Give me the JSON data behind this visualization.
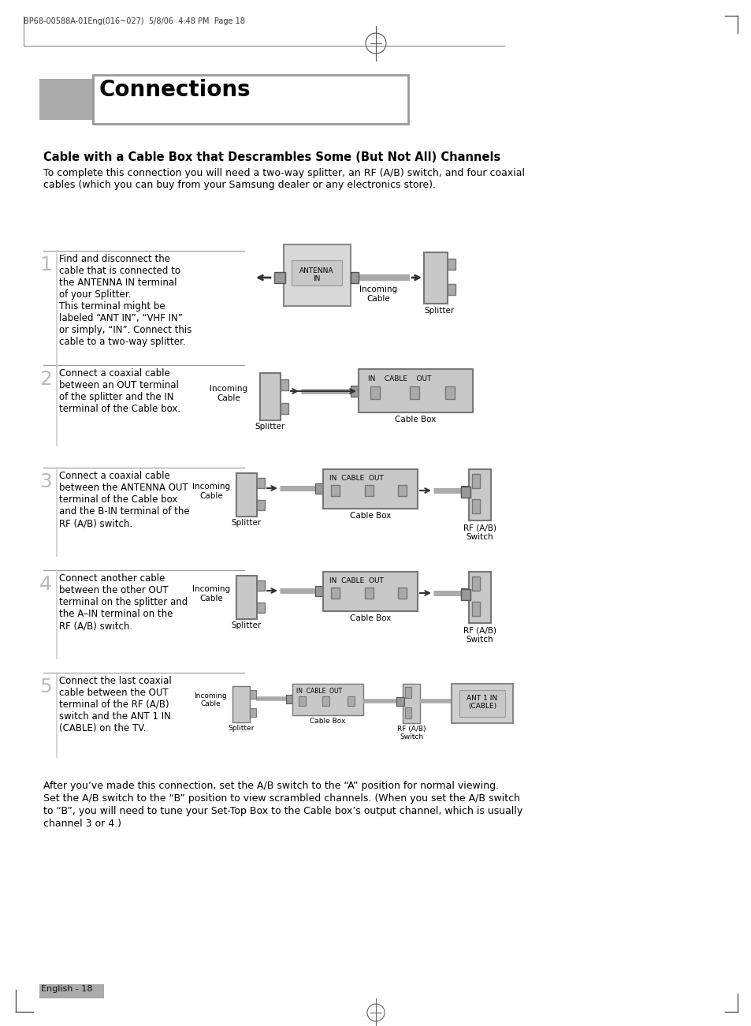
{
  "title": "Connections",
  "header_text": "BP68-00588A-01Eng(016~027)  5/8/06  4:48 PM  Page 18",
  "section_title": "Cable with a Cable Box that Descrambles Some (But Not All) Channels",
  "intro_line1": "To complete this connection you will need a two-way splitter, an RF (A/B) switch, and four coaxial",
  "intro_line2": "cables (which you can buy from your Samsung dealer or any electronics store).",
  "step1_text": "Find and disconnect the\ncable that is connected to\nthe ANTENNA IN terminal\nof your Splitter.\nThis terminal might be\nlabeled “ANT IN”, “VHF IN”\nor simply, “IN”. Connect this\ncable to a two-way splitter.",
  "step2_text": "Connect a coaxial cable\nbetween an OUT terminal\nof the splitter and the IN\nterminal of the Cable box.",
  "step3_text": "Connect a coaxial cable\nbetween the ANTENNA OUT\nterminal of the Cable box\nand the B-IN terminal of the\nRF (A/B) switch.",
  "step4_text": "Connect another cable\nbetween the other OUT\nterminal on the splitter and\nthe A–IN terminal on the\nRF (A/B) switch.",
  "step5_text": "Connect the last coaxial\ncable between the OUT\nterminal of the RF (A/B)\nswitch and the ANT 1 IN\n(CABLE) on the TV.",
  "footer_line1": "After you’ve made this connection, set the A/B switch to the “A” position for normal viewing.",
  "footer_line2": "Set the A/B switch to the “B” position to view scrambled channels. (When you set the A/B switch",
  "footer_line3": "to “B”, you will need to tune your Set-Top Box to the Cable box’s output channel, which is usually",
  "footer_line4": "channel 3 or 4.)",
  "page_label": "English - 18",
  "bg_color": "#ffffff",
  "grey_header": "#aaaaaa",
  "box_light": "#d0d0d0",
  "box_mid": "#c0c0c0",
  "box_dark": "#999999",
  "cable_color": "#888888",
  "text_color": "#000000",
  "step_tops": [
    320,
    465,
    595,
    725,
    855
  ],
  "step_sep_y": [
    318,
    463,
    593,
    723,
    853
  ]
}
